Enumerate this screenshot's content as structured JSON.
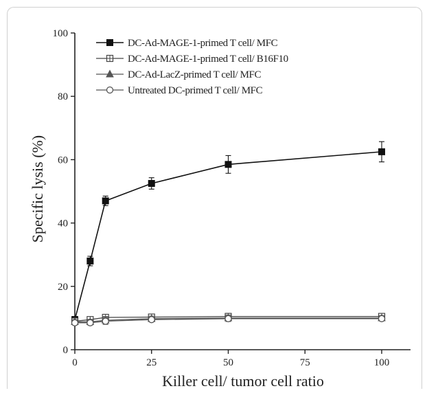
{
  "chart_data": {
    "type": "line",
    "xlabel": "Killer cell/ tumor cell ratio",
    "ylabel": "Specific lysis (%)",
    "xlim": [
      0,
      100
    ],
    "ylim": [
      0,
      100
    ],
    "xticks": [
      0,
      25,
      50,
      75,
      100
    ],
    "yticks": [
      0,
      20,
      40,
      60,
      80,
      100
    ],
    "legend_position": "top-left",
    "grid": false,
    "series": [
      {
        "name": "DC-Ad-MAGE-1-primed T cell/ MFC",
        "marker": "filled-square",
        "color": "#111111",
        "x": [
          0,
          5,
          10,
          25,
          50,
          100
        ],
        "y": [
          9.5,
          28,
          47,
          52.5,
          58.5,
          62.5
        ],
        "err": [
          1.0,
          1.5,
          1.5,
          1.8,
          2.8,
          3.2
        ]
      },
      {
        "name": "DC-Ad-MAGE-1-primed T cell/ B16F10",
        "marker": "boxed-plus",
        "color": "#444444",
        "x": [
          0,
          5,
          10,
          25,
          50,
          100
        ],
        "y": [
          9,
          9.5,
          10.2,
          10.3,
          10.5,
          10.5
        ],
        "err": [
          0.8,
          0.8,
          0.9,
          0.8,
          1.0,
          0.9
        ]
      },
      {
        "name": "DC-Ad-LacZ-primed T cell/ MFC",
        "marker": "filled-triangle",
        "color": "#555555",
        "x": [
          0,
          5,
          10,
          25,
          50,
          100
        ],
        "y": [
          8.8,
          8.8,
          9.3,
          9.8,
          10.0,
          10.0
        ],
        "err": [
          0.7,
          0.8,
          1.2,
          0.8,
          1.0,
          0.8
        ]
      },
      {
        "name": "Untreated DC-primed T cell/ MFC",
        "marker": "open-circle",
        "color": "#555555",
        "x": [
          0,
          5,
          10,
          25,
          50,
          100
        ],
        "y": [
          8.5,
          8.5,
          9.0,
          9.5,
          9.8,
          9.8
        ],
        "err": [
          0.6,
          0.7,
          1.0,
          0.7,
          0.9,
          0.7
        ]
      }
    ]
  }
}
